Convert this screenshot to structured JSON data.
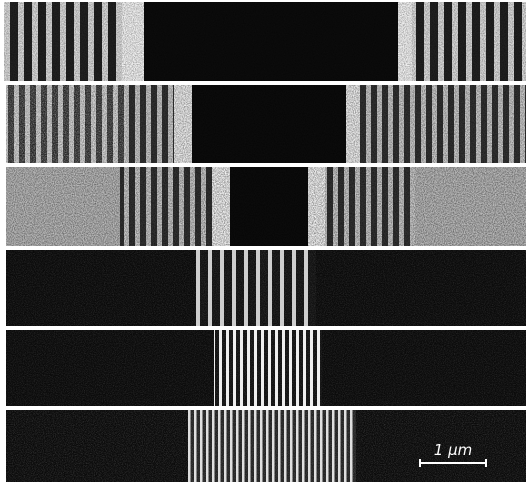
{
  "scale_bar": {
    "label": "1 μm"
  }
}
